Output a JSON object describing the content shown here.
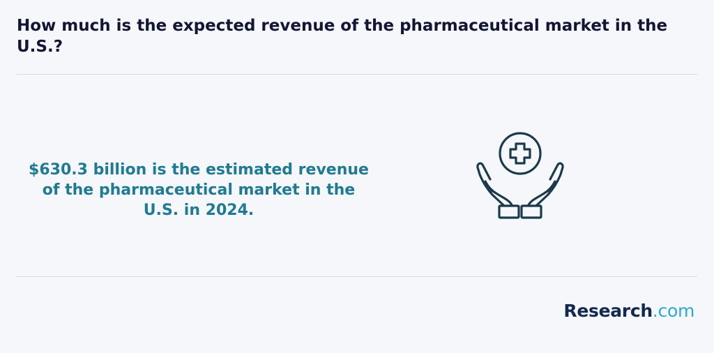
{
  "question": "How much is the expected revenue of the pharmaceutical market in the U.S.?",
  "answer": "$630.3 billion is the estimated revenue of the pharmaceutical market in the U.S. in 2024.",
  "illustration_icon": "hands-holding-medical-cross-icon",
  "brand": {
    "name": "Research",
    "tld": ".com"
  },
  "colors": {
    "background": "#f5f7fa",
    "question_text": "#121634",
    "answer_text": "#1f7a93",
    "icon_stroke": "#1b3a4b",
    "brand_main": "#14294f",
    "brand_accent": "#2fa8d0",
    "divider": "#d7dbe0"
  }
}
